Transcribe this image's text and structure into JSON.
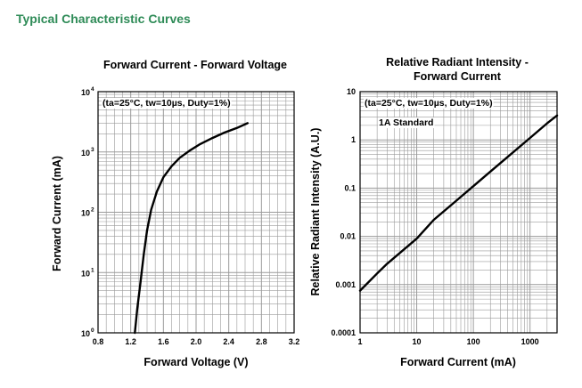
{
  "header": {
    "title": "Typical Characteristic Curves"
  },
  "colors": {
    "title": "#2e8b57",
    "grid": "#9a9a9a",
    "curve": "#000000"
  },
  "chart_data": [
    {
      "type": "line",
      "title": "Forward Current - Forward Voltage",
      "xlabel": "Forward Voltage (V)",
      "ylabel": "Forward Current (mA)",
      "xscale": "linear",
      "yscale": "log",
      "xlim": [
        0.8,
        3.2
      ],
      "ylim": [
        1,
        10000
      ],
      "x_ticks": [
        "0.8",
        "1.2",
        "1.6",
        "2.0",
        "2.4",
        "2.8",
        "3.2"
      ],
      "y_ticks": [
        {
          "base": "10",
          "exp": "0"
        },
        {
          "base": "10",
          "exp": "1"
        },
        {
          "base": "10",
          "exp": "2"
        },
        {
          "base": "10",
          "exp": "3"
        },
        {
          "base": "10",
          "exp": "4"
        }
      ],
      "annotation": "(ta=25°C, tw=10µs, Duty=1%)",
      "grid": true,
      "series": [
        {
          "x": [
            1.25,
            1.28,
            1.32,
            1.36,
            1.4,
            1.45,
            1.52,
            1.6,
            1.7,
            1.8,
            1.92,
            2.05,
            2.2,
            2.35,
            2.5,
            2.63
          ],
          "y": [
            1,
            2.5,
            7,
            20,
            50,
            110,
            220,
            380,
            580,
            800,
            1050,
            1350,
            1700,
            2100,
            2500,
            3000
          ]
        }
      ]
    },
    {
      "type": "line",
      "title": "Relative Radiant Intensity - Forward Current",
      "title_lines": [
        "Relative Radiant Intensity -",
        "Forward Current"
      ],
      "xlabel": "Forward Current (mA)",
      "ylabel": "Relative Radiant Intensity (A.U.)",
      "xscale": "log",
      "yscale": "log",
      "xlim": [
        1,
        3000
      ],
      "ylim": [
        0.0001,
        10
      ],
      "x_ticks": [
        "1",
        "10",
        "100",
        "1000"
      ],
      "y_ticks": [
        "0.0001",
        "0.001",
        "0.01",
        "0.1",
        "1",
        "10"
      ],
      "annotation": "(ta=25°C, tw=10µs, Duty=1%)",
      "annotation2": "1A Standard",
      "grid": true,
      "series": [
        {
          "x": [
            1,
            2,
            3,
            5,
            10,
            20,
            50,
            100,
            200,
            500,
            1000,
            2000,
            3000
          ],
          "y": [
            0.00075,
            0.0017,
            0.0027,
            0.0045,
            0.009,
            0.022,
            0.055,
            0.11,
            0.22,
            0.55,
            1.1,
            2.2,
            3.2
          ]
        }
      ]
    }
  ]
}
